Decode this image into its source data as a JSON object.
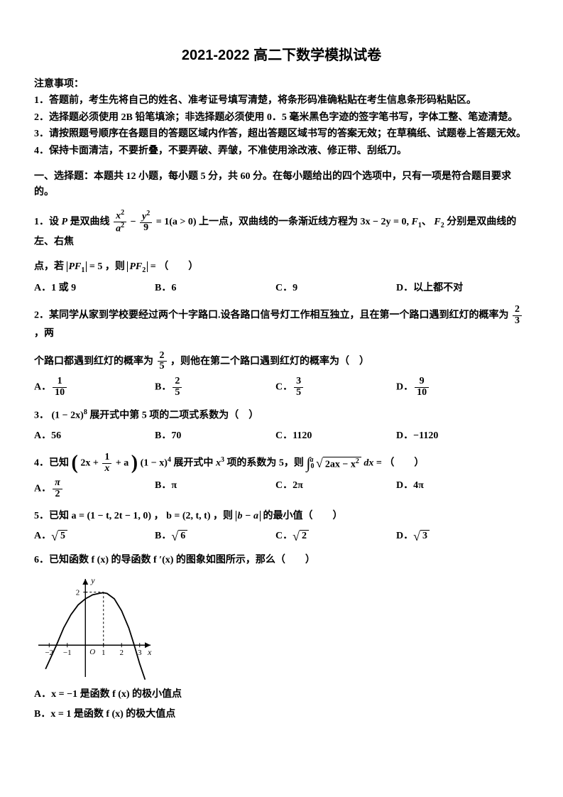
{
  "title": "2021-2022 高二下数学模拟试卷",
  "instructions": {
    "heading": "注意事项：",
    "lines": [
      "1．答题前，考生先将自己的姓名、准考证号填写清楚，将条形码准确粘贴在考生信息条形码粘贴区。",
      "2．选择题必须使用 2B 铅笔填涂；非选择题必须使用 0．5 毫米黑色字迹的签字笔书写，字体工整、笔迹清楚。",
      "3．请按照题号顺序在各题目的答题区域内作答，超出答题区域书写的答案无效；在草稿纸、试题卷上答题无效。",
      "4．保持卡面清洁，不要折叠，不要弄破、弄皱，不准使用涂改液、修正带、刮纸刀。"
    ]
  },
  "sectionHead": "一、选择题：本题共 12 小题，每小题 5 分，共 60 分。在每小题给出的四个选项中，只有一项是符合题目要求的。",
  "q1": {
    "pre": "1．设",
    "Pword": "P",
    "mid1": "是双曲线",
    "eqPart1a": "x",
    "eqPart1b": "a",
    "eqPart2a": "y",
    "eqPart2b": "9",
    "eqRight": "= 1(a > 0)",
    "mid2": "上一点，双曲线的一条渐近线方程为",
    "asym": "3x − 2y = 0,",
    "F1": "F",
    "F2": "F",
    "mid3": "分别是双曲线的左、右焦",
    "line2a": "点，若",
    "pf1": "PF",
    "pf1eq": "= 5",
    "comma": "，则",
    "pf2": "PF",
    "pf2eq": " = ",
    "blank": "（　　）",
    "opts": {
      "A": "A．1 或 9",
      "B": "B．6",
      "C": "C．9",
      "D": "D．以上都不对"
    }
  },
  "q2": {
    "line1a": "2．某同学从家到学校要经过两个十字路口.设各路口信号灯工作相互独立，且在第一个路口遇到红灯的概率为",
    "p1n": "2",
    "p1d": "3",
    "line1b": "，两",
    "line2a": "个路口都遇到红灯的概率为",
    "p2n": "2",
    "p2d": "5",
    "line2b": "，则他在第二个路口遇到红灯的概率为（　）",
    "opts": {
      "A": {
        "label": "A．",
        "n": "1",
        "d": "10"
      },
      "B": {
        "label": "B．",
        "n": "2",
        "d": "5"
      },
      "C": {
        "label": "C．",
        "n": "3",
        "d": "5"
      },
      "D": {
        "label": "D．",
        "n": "9",
        "d": "10"
      }
    }
  },
  "q3": {
    "text1": "3．",
    "expr": "(1 − 2x)",
    "pow": "8",
    "text2": "展开式中第 5 项的二项式系数为（　）",
    "opts": {
      "A": "A．56",
      "B": "B．70",
      "C": "C．1120",
      "D": "D．−1120"
    }
  },
  "q4": {
    "text1": "4．已知",
    "inner1": "2x +",
    "frac_n": "1",
    "frac_d": "x",
    "inner2": "+ a",
    "factor": "(1 − x)",
    "pow": "4",
    "text2": "展开式中",
    "x3": "x",
    "x3pow": "3",
    "text3": "项的系数为 5，则",
    "int_low": "0",
    "int_up": "a",
    "rad": "2ax − x",
    "rad_pow": "2",
    "dx": " dx",
    "text4": " = （　　）",
    "opts": {
      "A": {
        "label": "A．",
        "n": "π",
        "d": "2"
      },
      "B": "B．π",
      "C": "C．2π",
      "D": "D．4π"
    }
  },
  "q5": {
    "text1": "5．已知 ",
    "a": "a = (1 − t, 2t − 1, 0)",
    "comma": "，",
    "b": "b = (2, t, t)",
    "text2": "，则",
    "expr": "b − a",
    "text3": "的最小值（　　）",
    "opts": {
      "A": {
        "label": "A．",
        "rad": "5"
      },
      "B": {
        "label": "B．",
        "rad": "6"
      },
      "C": {
        "label": "C．",
        "rad": "2"
      },
      "D": {
        "label": "D．",
        "rad": "3"
      }
    }
  },
  "q6": {
    "text": "6．已知函数 f (x) 的导函数 f ′(x) 的图象如图所示，那么（　　）",
    "graph": {
      "width": 170,
      "height": 150,
      "axis_color": "#000",
      "curve_color": "#000",
      "x_ticks": [
        {
          "x": -2,
          "label": "−2"
        },
        {
          "x": -1,
          "label": "−1"
        },
        {
          "x": 1,
          "label": "1"
        },
        {
          "x": 2,
          "label": "2"
        },
        {
          "x": 3,
          "label": "3"
        }
      ],
      "y_ticks": [
        {
          "y": 2,
          "label": "2"
        }
      ],
      "origin_label": "O",
      "x_label": "x",
      "y_label": "y",
      "xrange": [
        -2.6,
        3.6
      ],
      "yrange": [
        -1.2,
        2.5
      ],
      "curve": [
        [
          -2.2,
          -0.9
        ],
        [
          -2,
          -0.6
        ],
        [
          -1.6,
          0.0
        ],
        [
          -1.2,
          0.65
        ],
        [
          -0.8,
          1.15
        ],
        [
          -0.4,
          1.52
        ],
        [
          0,
          1.75
        ],
        [
          0.4,
          1.9
        ],
        [
          0.8,
          1.96
        ],
        [
          1,
          1.98
        ],
        [
          1.2,
          1.95
        ],
        [
          1.6,
          1.75
        ],
        [
          2,
          1.3
        ],
        [
          2.4,
          0.65
        ],
        [
          2.7,
          0.0
        ],
        [
          3.0,
          -0.7
        ],
        [
          3.3,
          -1.3
        ]
      ],
      "dashed_x": 1,
      "dashed_y": 2
    },
    "optA": "A．x = −1 是函数 f (x) 的极小值点",
    "optB": "B．x = 1 是函数 f (x) 的极大值点"
  },
  "style": {
    "body_fontsize": 14,
    "title_fontsize": 20,
    "fg": "#000000",
    "bg": "#ffffff"
  }
}
